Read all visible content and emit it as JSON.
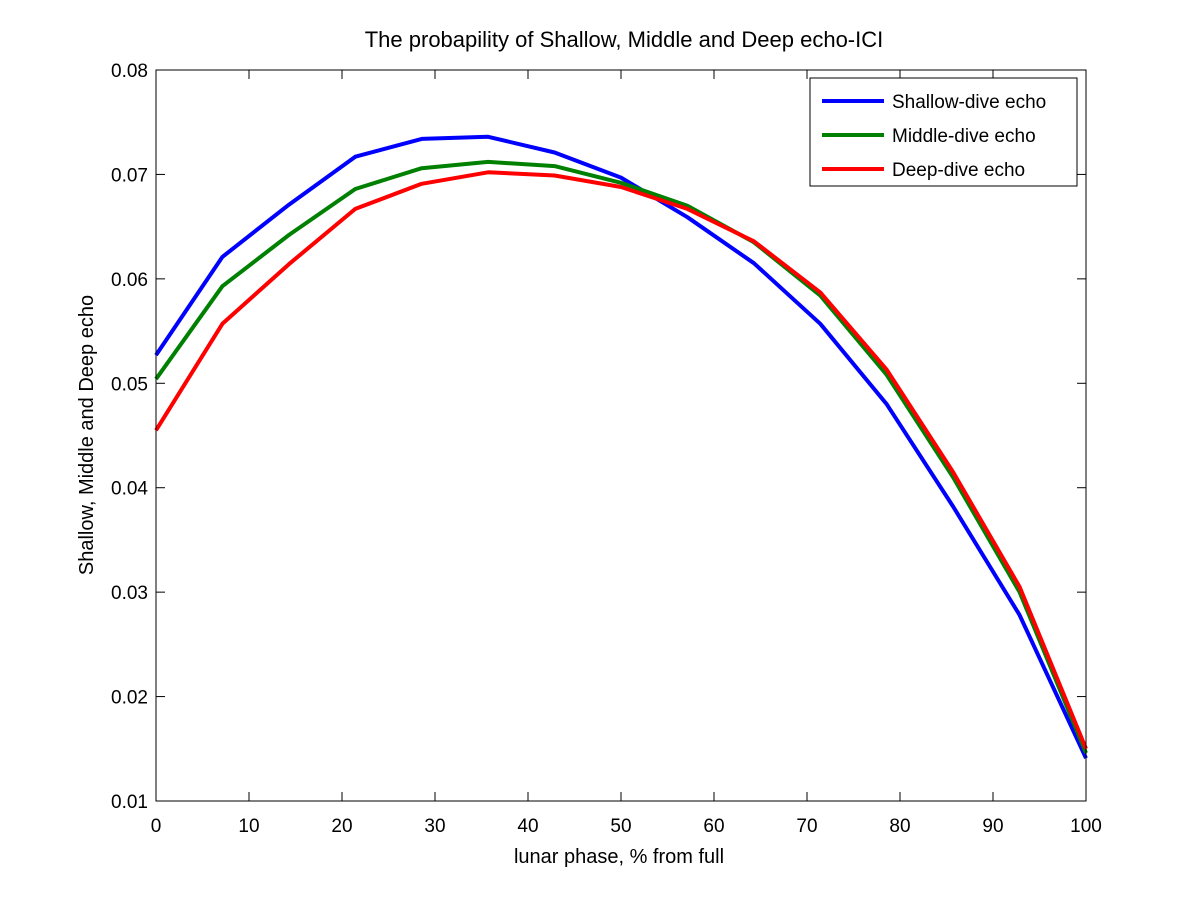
{
  "chart_data": {
    "type": "line",
    "title": "The probapility of Shallow, Middle and Deep echo-ICI",
    "xlabel": "lunar phase, % from full",
    "ylabel": "Shallow, Middle and Deep echo",
    "xlim": [
      0,
      100
    ],
    "ylim": [
      0.01,
      0.08
    ],
    "xticks": [
      0,
      10,
      20,
      30,
      40,
      50,
      60,
      70,
      80,
      90,
      100
    ],
    "xtick_labels": [
      "0",
      "10",
      "20",
      "30",
      "40",
      "50",
      "60",
      "70",
      "80",
      "90",
      "100"
    ],
    "yticks": [
      0.01,
      0.02,
      0.03,
      0.04,
      0.05,
      0.06,
      0.07,
      0.08
    ],
    "ytick_labels": [
      "0.01",
      "0.02",
      "0.03",
      "0.04",
      "0.05",
      "0.06",
      "0.07",
      "0.08"
    ],
    "grid": false,
    "legend_position": "top-right",
    "x": [
      0,
      7.14,
      14.29,
      21.43,
      28.57,
      35.71,
      42.86,
      50,
      57.14,
      64.29,
      71.43,
      78.57,
      85.71,
      92.86,
      100
    ],
    "series": [
      {
        "name": "Shallow-dive echo",
        "color": "#0000ff",
        "values": [
          0.0527,
          0.0621,
          0.0671,
          0.0717,
          0.0734,
          0.0736,
          0.0721,
          0.0697,
          0.0659,
          0.0615,
          0.0557,
          0.048,
          0.0382,
          0.0278,
          0.0141
        ]
      },
      {
        "name": "Middle-dive echo",
        "color": "#008000",
        "values": [
          0.0504,
          0.0593,
          0.0642,
          0.0686,
          0.0706,
          0.0712,
          0.0708,
          0.0692,
          0.067,
          0.0635,
          0.0584,
          0.0508,
          0.041,
          0.03,
          0.0146
        ]
      },
      {
        "name": "Deep-dive echo",
        "color": "#ff0000",
        "values": [
          0.0455,
          0.0557,
          0.0614,
          0.0667,
          0.0691,
          0.0702,
          0.0699,
          0.0688,
          0.0667,
          0.0636,
          0.0587,
          0.0513,
          0.0415,
          0.0305,
          0.015
        ]
      }
    ]
  }
}
